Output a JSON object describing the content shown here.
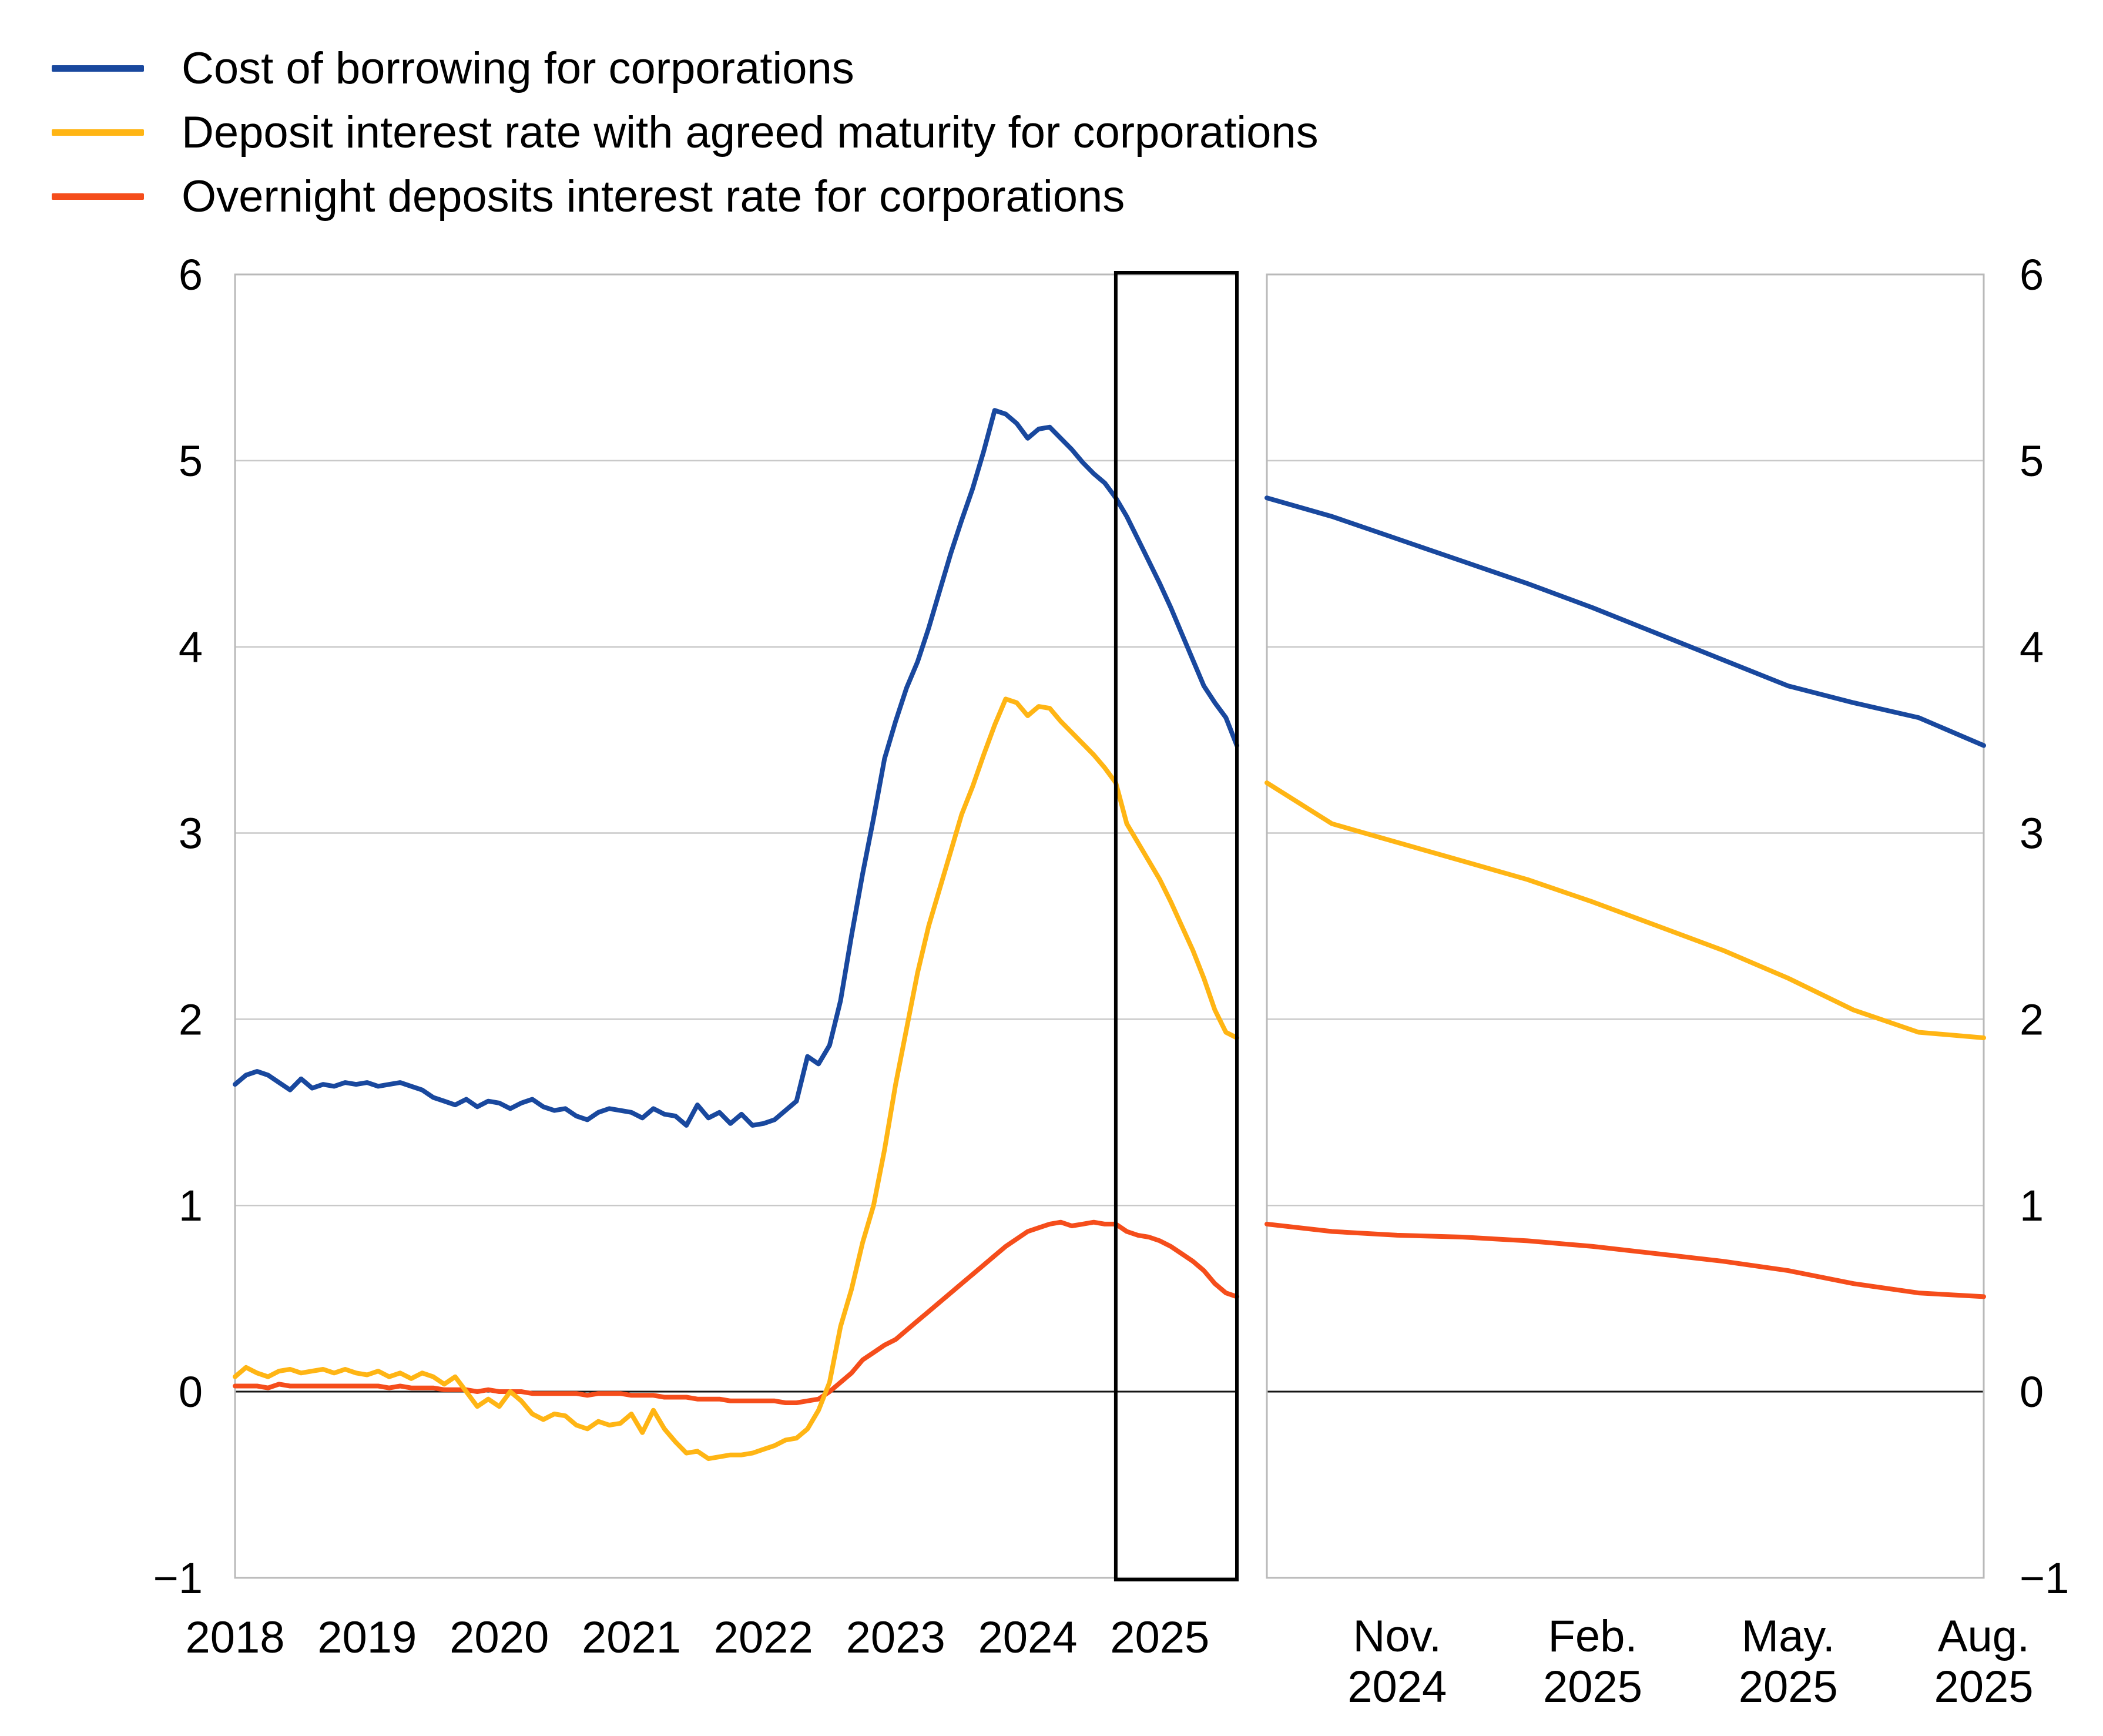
{
  "legend": {
    "items": [
      {
        "label": "Cost of borrowing for corporations",
        "color": "#19489E"
      },
      {
        "label": "Deposit interest rate with agreed maturity for corporations",
        "color": "#FFB514"
      },
      {
        "label": "Overnight deposits interest rate for corporations",
        "color": "#F54D1B"
      }
    ]
  },
  "chart_data": {
    "type": "line",
    "title": "",
    "xlabel": "",
    "ylabel": "",
    "ylim": [
      -1,
      6
    ],
    "grid": true,
    "y_axis": {
      "tick_values": [
        6,
        5,
        4,
        3,
        2,
        1,
        0,
        -1
      ],
      "tick_labels": [
        "6",
        "5",
        "4",
        "3",
        "2",
        "1",
        "0",
        "−1"
      ],
      "sides": [
        "left",
        "right"
      ]
    },
    "colors": {
      "blue": "#19489E",
      "yellow": "#FFB514",
      "red": "#F54D1B",
      "gridline": "#C9C9C9",
      "panel_border": "#B9B9B9",
      "zero_line": "#161615",
      "highlight_box": "#000000"
    },
    "panels": [
      {
        "id": "history",
        "months_start": "2018-01",
        "months_end": "2025-08",
        "x_tick_labels": [
          "2018",
          "2019",
          "2020",
          "2021",
          "2022",
          "2023",
          "2024",
          "2025"
        ],
        "x_tick_month_index": [
          0,
          12,
          24,
          36,
          48,
          60,
          72,
          84
        ],
        "highlight_box": {
          "start_index": 80,
          "end_index": 91,
          "period": "Sep 2024 - Aug 2025"
        },
        "series": [
          {
            "name": "Cost of borrowing for corporations",
            "color": "#19489E",
            "values": [
              1.65,
              1.7,
              1.72,
              1.7,
              1.66,
              1.62,
              1.68,
              1.63,
              1.65,
              1.64,
              1.66,
              1.65,
              1.66,
              1.64,
              1.65,
              1.66,
              1.64,
              1.62,
              1.58,
              1.56,
              1.54,
              1.57,
              1.53,
              1.56,
              1.55,
              1.52,
              1.55,
              1.57,
              1.53,
              1.51,
              1.52,
              1.48,
              1.46,
              1.5,
              1.52,
              1.51,
              1.5,
              1.47,
              1.52,
              1.49,
              1.48,
              1.43,
              1.54,
              1.47,
              1.5,
              1.44,
              1.49,
              1.43,
              1.44,
              1.46,
              1.51,
              1.56,
              1.8,
              1.76,
              1.86,
              2.1,
              2.45,
              2.78,
              3.08,
              3.4,
              3.6,
              3.78,
              3.92,
              4.1,
              4.3,
              4.5,
              4.68,
              4.85,
              5.05,
              5.27,
              5.25,
              5.2,
              5.12,
              5.17,
              5.18,
              5.12,
              5.06,
              4.99,
              4.93,
              4.88,
              4.8,
              4.7,
              4.58,
              4.46,
              4.34,
              4.21,
              4.07,
              3.93,
              3.79,
              3.7,
              3.62,
              3.47
            ]
          },
          {
            "name": "Deposit interest rate with agreed maturity for corporations",
            "color": "#FFB514",
            "values": [
              0.08,
              0.13,
              0.1,
              0.08,
              0.11,
              0.12,
              0.1,
              0.11,
              0.12,
              0.1,
              0.12,
              0.1,
              0.09,
              0.11,
              0.08,
              0.1,
              0.07,
              0.1,
              0.08,
              0.04,
              0.08,
              0.0,
              -0.08,
              -0.04,
              -0.08,
              0.0,
              -0.05,
              -0.12,
              -0.15,
              -0.12,
              -0.13,
              -0.18,
              -0.2,
              -0.16,
              -0.18,
              -0.17,
              -0.12,
              -0.22,
              -0.1,
              -0.2,
              -0.27,
              -0.33,
              -0.32,
              -0.36,
              -0.35,
              -0.34,
              -0.34,
              -0.33,
              -0.31,
              -0.29,
              -0.26,
              -0.25,
              -0.2,
              -0.1,
              0.05,
              0.35,
              0.55,
              0.8,
              1.0,
              1.3,
              1.65,
              1.95,
              2.25,
              2.5,
              2.7,
              2.9,
              3.1,
              3.25,
              3.42,
              3.58,
              3.72,
              3.7,
              3.63,
              3.68,
              3.67,
              3.6,
              3.54,
              3.48,
              3.42,
              3.35,
              3.27,
              3.05,
              2.95,
              2.85,
              2.75,
              2.63,
              2.5,
              2.37,
              2.22,
              2.05,
              1.93,
              1.9
            ]
          },
          {
            "name": "Overnight deposits interest rate for corporations",
            "color": "#F54D1B",
            "values": [
              0.03,
              0.03,
              0.03,
              0.02,
              0.04,
              0.03,
              0.03,
              0.03,
              0.03,
              0.03,
              0.03,
              0.03,
              0.03,
              0.03,
              0.02,
              0.03,
              0.02,
              0.02,
              0.02,
              0.01,
              0.01,
              0.01,
              0.0,
              0.01,
              0.0,
              0.0,
              0.0,
              -0.01,
              -0.01,
              -0.01,
              -0.01,
              -0.01,
              -0.02,
              -0.01,
              -0.01,
              -0.01,
              -0.02,
              -0.02,
              -0.02,
              -0.03,
              -0.03,
              -0.03,
              -0.04,
              -0.04,
              -0.04,
              -0.05,
              -0.05,
              -0.05,
              -0.05,
              -0.05,
              -0.06,
              -0.06,
              -0.05,
              -0.04,
              0.0,
              0.05,
              0.1,
              0.17,
              0.21,
              0.25,
              0.28,
              0.33,
              0.38,
              0.43,
              0.48,
              0.53,
              0.58,
              0.63,
              0.68,
              0.73,
              0.78,
              0.82,
              0.86,
              0.88,
              0.9,
              0.91,
              0.89,
              0.9,
              0.91,
              0.9,
              0.9,
              0.86,
              0.84,
              0.83,
              0.81,
              0.78,
              0.74,
              0.7,
              0.65,
              0.58,
              0.53,
              0.51
            ]
          }
        ]
      },
      {
        "id": "recent-zoom",
        "months_start": "2024-09",
        "months_end": "2025-08",
        "x_tick_labels": [
          [
            "Nov.",
            "2024"
          ],
          [
            "Feb.",
            "2025"
          ],
          [
            "May.",
            "2025"
          ],
          [
            "Aug.",
            "2025"
          ]
        ],
        "x_tick_month_index": [
          2,
          5,
          8,
          11
        ],
        "series": [
          {
            "name": "Cost of borrowing for corporations",
            "color": "#19489E",
            "values": [
              4.8,
              4.7,
              4.58,
              4.46,
              4.34,
              4.21,
              4.07,
              3.93,
              3.79,
              3.7,
              3.62,
              3.47
            ]
          },
          {
            "name": "Deposit interest rate with agreed maturity for corporations",
            "color": "#FFB514",
            "values": [
              3.27,
              3.05,
              2.95,
              2.85,
              2.75,
              2.63,
              2.5,
              2.37,
              2.22,
              2.05,
              1.93,
              1.9
            ]
          },
          {
            "name": "Overnight deposits interest rate for corporations",
            "color": "#F54D1B",
            "values": [
              0.9,
              0.86,
              0.84,
              0.83,
              0.81,
              0.78,
              0.74,
              0.7,
              0.65,
              0.58,
              0.53,
              0.51
            ]
          }
        ]
      }
    ]
  }
}
